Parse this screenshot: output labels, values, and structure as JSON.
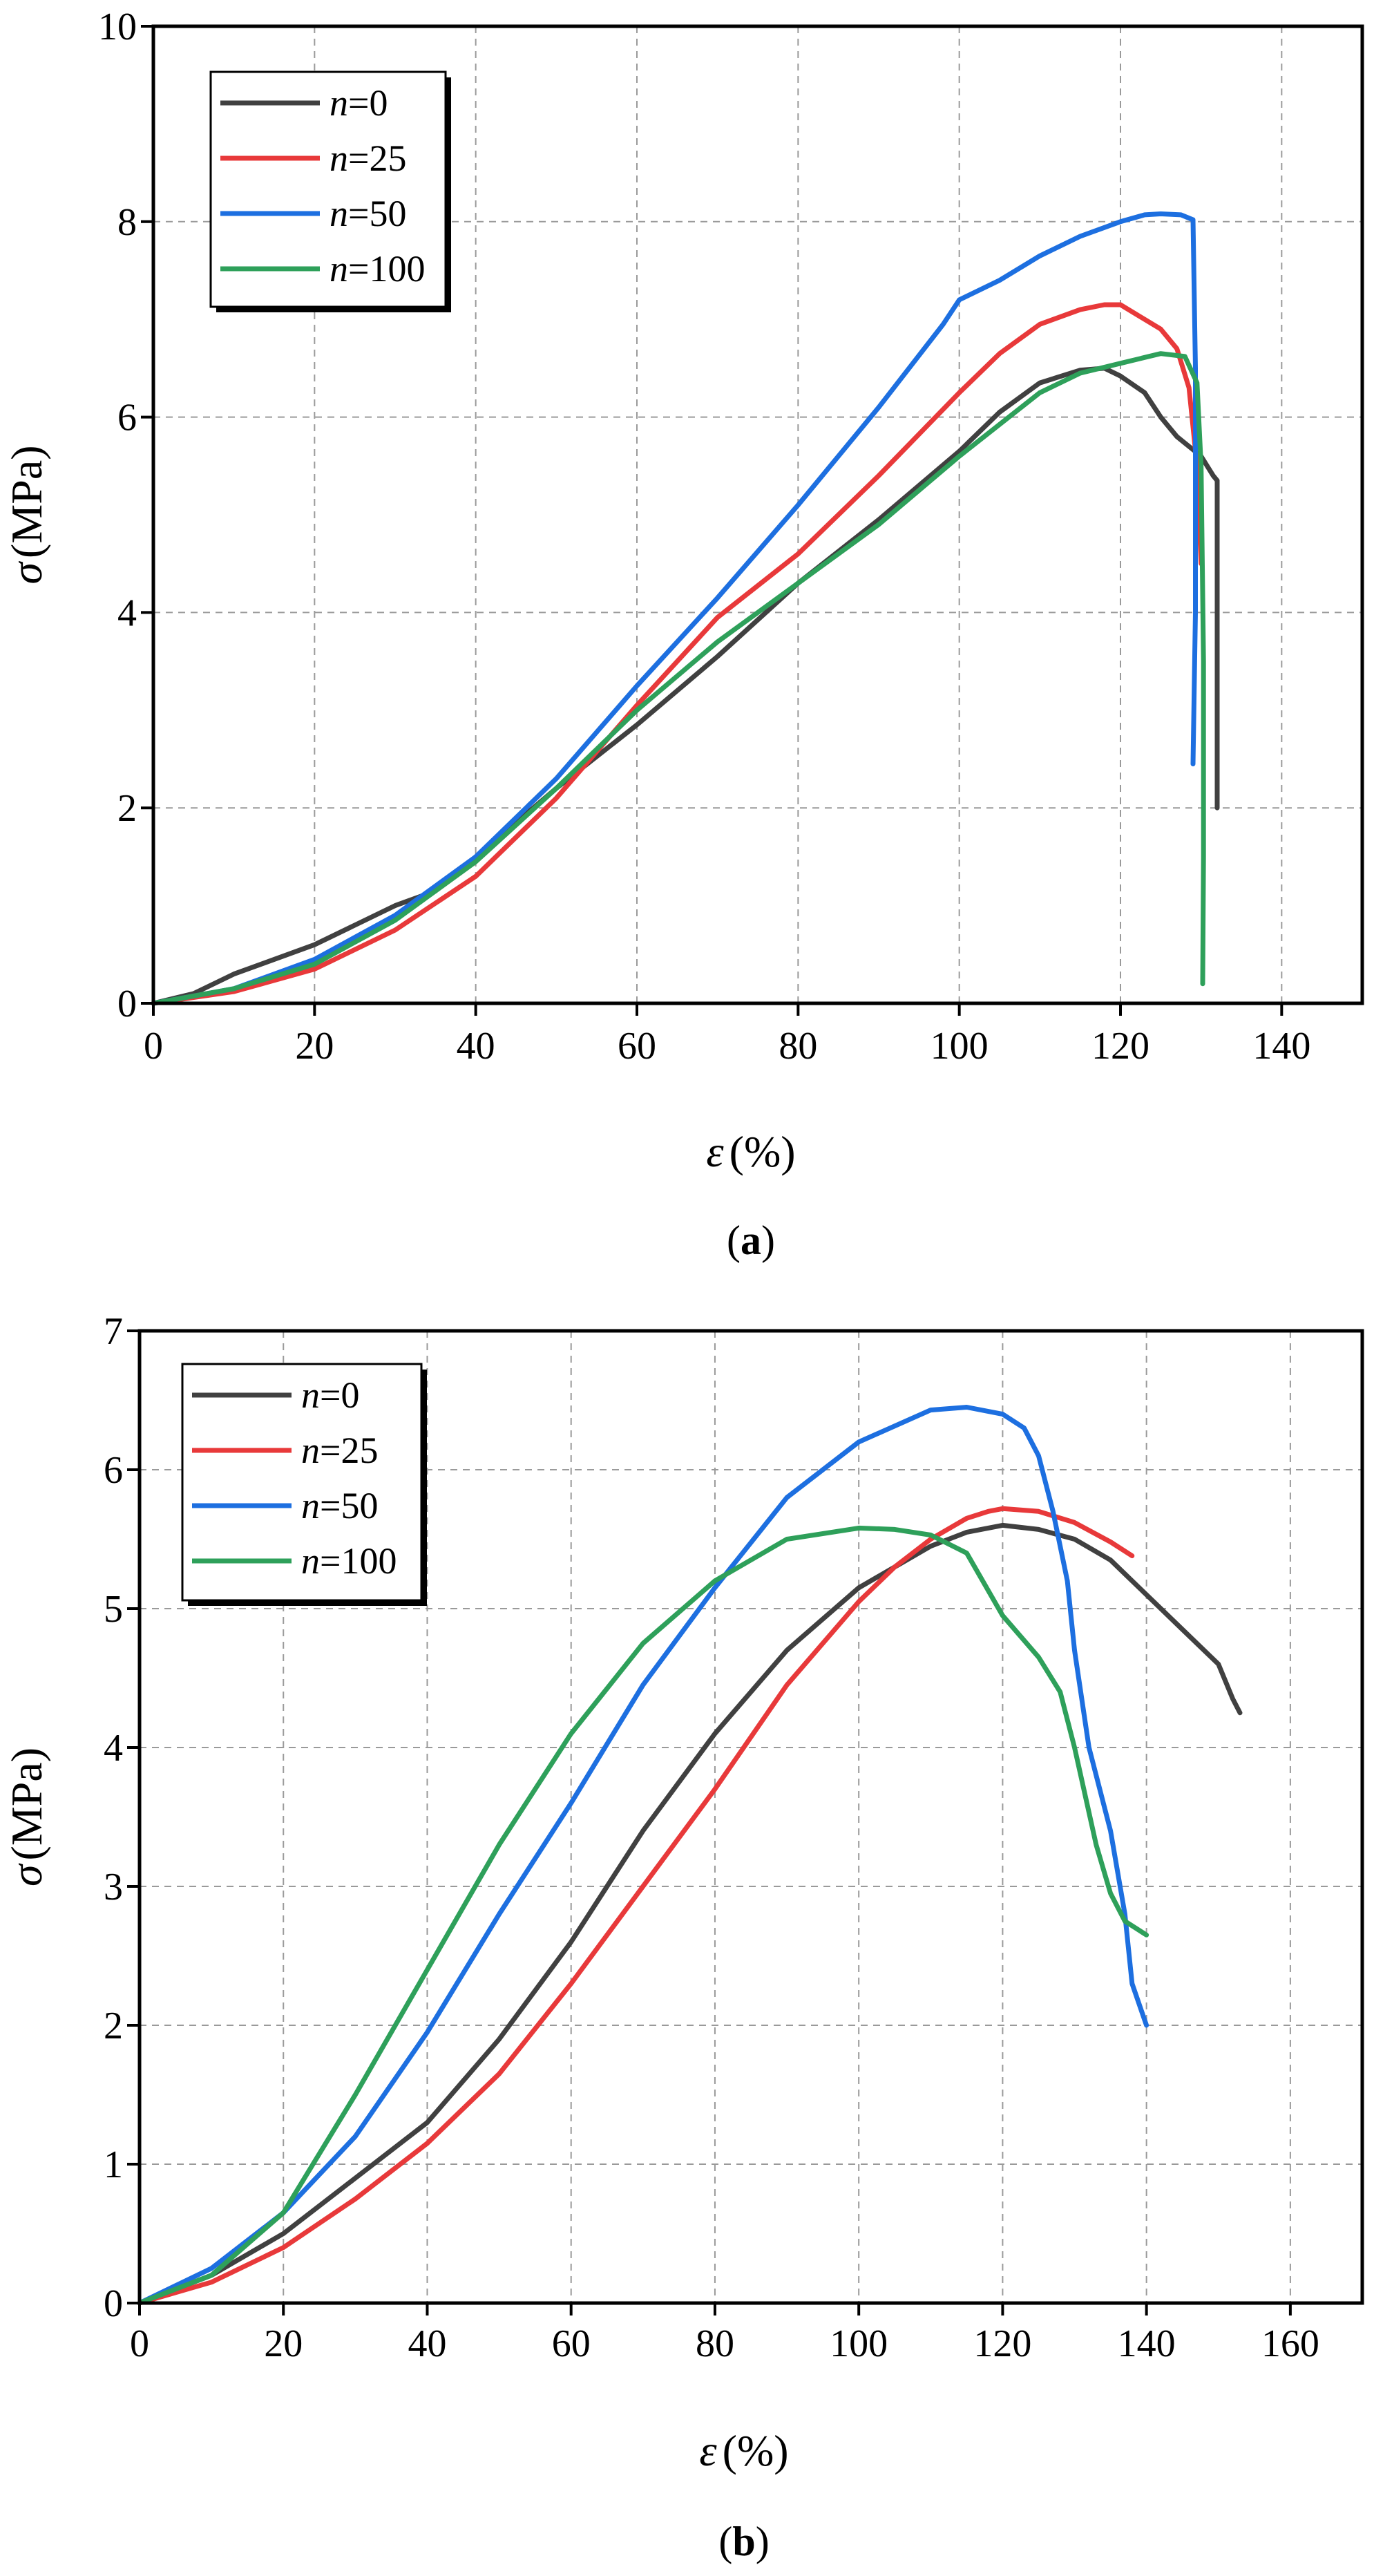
{
  "chart_data": [
    {
      "type": "line",
      "panel": "a",
      "xlabel_symbol": "ε",
      "xlabel_unit": "(%)",
      "ylabel_symbol": "σ",
      "ylabel_unit": "(MPa)",
      "xlim": [
        0,
        150
      ],
      "ylim": [
        0,
        10
      ],
      "xticks": [
        0,
        20,
        40,
        60,
        80,
        100,
        120,
        140
      ],
      "yticks": [
        0,
        2,
        4,
        6,
        8,
        10
      ],
      "grid": true,
      "legend_position": "top-left",
      "series": [
        {
          "name_var": "n",
          "name_val": "=0",
          "color": "#404040",
          "x": [
            0,
            5,
            10,
            20,
            25,
            30,
            35,
            40,
            50,
            60,
            70,
            80,
            90,
            100,
            105,
            110,
            115,
            118,
            120,
            123,
            125,
            127,
            130,
            131.5,
            132,
            132,
            132
          ],
          "y": [
            0,
            0.1,
            0.3,
            0.6,
            0.8,
            1.0,
            1.15,
            1.5,
            2.2,
            2.85,
            3.55,
            4.3,
            4.95,
            5.65,
            6.05,
            6.35,
            6.48,
            6.5,
            6.42,
            6.25,
            6.0,
            5.8,
            5.6,
            5.4,
            5.35,
            3.5,
            2.0
          ]
        },
        {
          "name_var": "n",
          "name_val": "=25",
          "color": "#e8393a",
          "x": [
            0,
            10,
            20,
            30,
            40,
            50,
            60,
            70,
            80,
            90,
            100,
            105,
            110,
            115,
            118,
            120,
            122,
            125,
            127,
            128.5,
            129.5,
            130
          ],
          "y": [
            0,
            0.12,
            0.35,
            0.75,
            1.3,
            2.1,
            3.05,
            3.95,
            4.6,
            5.4,
            6.25,
            6.65,
            6.95,
            7.1,
            7.15,
            7.15,
            7.05,
            6.9,
            6.7,
            6.3,
            5.5,
            4.5
          ]
        },
        {
          "name_var": "n",
          "name_val": "=50",
          "color": "#1d6fe0",
          "x": [
            0,
            10,
            20,
            30,
            40,
            50,
            60,
            70,
            80,
            90,
            98,
            100,
            105,
            110,
            115,
            120,
            123,
            125,
            127.5,
            129,
            129.3,
            129.3,
            129
          ],
          "y": [
            0,
            0.15,
            0.45,
            0.9,
            1.5,
            2.3,
            3.25,
            4.15,
            5.1,
            6.1,
            6.95,
            7.2,
            7.4,
            7.65,
            7.85,
            8.0,
            8.07,
            8.08,
            8.07,
            8.02,
            6.5,
            4.0,
            2.45
          ]
        },
        {
          "name_var": "n",
          "name_val": "=100",
          "color": "#2ea05a",
          "x": [
            0,
            10,
            20,
            30,
            40,
            50,
            60,
            70,
            80,
            90,
            100,
            110,
            115,
            120,
            125,
            128,
            129.5,
            130,
            130.3,
            130.3,
            130.2
          ],
          "y": [
            0,
            0.15,
            0.4,
            0.85,
            1.45,
            2.2,
            3.0,
            3.7,
            4.3,
            4.9,
            5.6,
            6.25,
            6.45,
            6.55,
            6.65,
            6.62,
            6.35,
            5.5,
            3.5,
            1.5,
            0.2
          ]
        }
      ]
    },
    {
      "type": "line",
      "panel": "b",
      "xlabel_symbol": "ε",
      "xlabel_unit": "(%)",
      "ylabel_symbol": "σ",
      "ylabel_unit": "(MPa)",
      "xlim": [
        0,
        170
      ],
      "ylim": [
        0,
        7
      ],
      "xticks": [
        0,
        20,
        40,
        60,
        80,
        100,
        120,
        140,
        160
      ],
      "yticks": [
        0,
        1,
        2,
        3,
        4,
        5,
        6,
        7
      ],
      "grid": true,
      "legend_position": "top-left",
      "series": [
        {
          "name_var": "n",
          "name_val": "=0",
          "color": "#404040",
          "x": [
            0,
            10,
            20,
            30,
            40,
            50,
            60,
            70,
            80,
            90,
            100,
            110,
            115,
            120,
            125,
            130,
            135,
            140,
            145,
            150,
            152,
            153
          ],
          "y": [
            0,
            0.2,
            0.5,
            0.9,
            1.3,
            1.9,
            2.6,
            3.4,
            4.1,
            4.7,
            5.15,
            5.45,
            5.55,
            5.6,
            5.57,
            5.5,
            5.35,
            5.1,
            4.85,
            4.6,
            4.35,
            4.25
          ]
        },
        {
          "name_var": "n",
          "name_val": "=25",
          "color": "#e8393a",
          "x": [
            0,
            10,
            20,
            30,
            40,
            50,
            60,
            70,
            80,
            90,
            100,
            105,
            110,
            115,
            118,
            120,
            125,
            130,
            135,
            138
          ],
          "y": [
            0,
            0.15,
            0.4,
            0.75,
            1.15,
            1.65,
            2.3,
            3.0,
            3.7,
            4.45,
            5.05,
            5.3,
            5.5,
            5.65,
            5.7,
            5.72,
            5.7,
            5.62,
            5.48,
            5.38
          ]
        },
        {
          "name_var": "n",
          "name_val": "=50",
          "color": "#1d6fe0",
          "x": [
            0,
            10,
            20,
            30,
            40,
            50,
            60,
            70,
            80,
            90,
            100,
            110,
            115,
            120,
            123,
            125,
            127,
            129,
            130,
            132,
            135,
            137,
            138,
            140
          ],
          "y": [
            0,
            0.25,
            0.65,
            1.2,
            1.95,
            2.8,
            3.6,
            4.45,
            5.15,
            5.8,
            6.2,
            6.43,
            6.45,
            6.4,
            6.3,
            6.1,
            5.7,
            5.2,
            4.7,
            4.0,
            3.4,
            2.8,
            2.3,
            2.0
          ]
        },
        {
          "name_var": "n",
          "name_val": "=100",
          "color": "#2ea05a",
          "x": [
            0,
            10,
            20,
            30,
            40,
            50,
            60,
            70,
            80,
            90,
            100,
            105,
            110,
            115,
            120,
            125,
            128,
            130,
            133,
            135,
            137,
            140
          ],
          "y": [
            0,
            0.2,
            0.65,
            1.5,
            2.4,
            3.3,
            4.1,
            4.75,
            5.2,
            5.5,
            5.58,
            5.57,
            5.53,
            5.4,
            4.95,
            4.65,
            4.4,
            4.0,
            3.3,
            2.95,
            2.75,
            2.65
          ]
        }
      ]
    }
  ]
}
